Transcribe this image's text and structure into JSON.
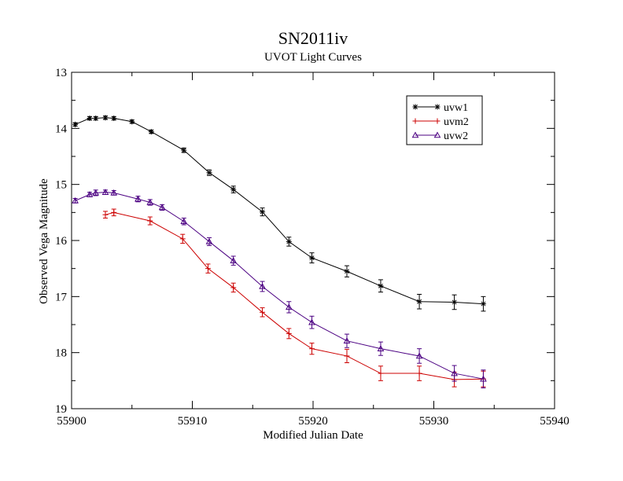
{
  "chart_data": {
    "type": "line",
    "title": "SN2011iv",
    "subtitle": "UVOT Light Curves",
    "xlabel": "Modified Julian Date",
    "ylabel": "Observed Vega Magnitude",
    "xlim": [
      55900,
      55940
    ],
    "ylim": [
      13,
      19
    ],
    "y_inverted": true,
    "x_ticks": [
      "55900",
      "55910",
      "55920",
      "55930",
      "55940"
    ],
    "y_ticks": [
      "13",
      "14",
      "15",
      "16",
      "17",
      "18",
      "19"
    ],
    "grid": false,
    "legend_position": "top-right",
    "series": [
      {
        "name": "uvw1",
        "color": "#000000",
        "marker": "star",
        "x": [
          55900.3,
          55901.5,
          55902.0,
          55902.8,
          55903.5,
          55905.0,
          55906.6,
          55909.3,
          55911.4,
          55913.4,
          55915.8,
          55918.0,
          55919.9,
          55922.8,
          55925.6,
          55928.8,
          55931.7,
          55934.1
        ],
        "y": [
          13.93,
          13.82,
          13.82,
          13.81,
          13.82,
          13.88,
          14.06,
          14.39,
          14.79,
          15.09,
          15.49,
          16.02,
          16.31,
          16.55,
          16.81,
          17.09,
          17.1,
          17.13
        ],
        "err": [
          0.03,
          0.03,
          0.03,
          0.03,
          0.03,
          0.03,
          0.03,
          0.04,
          0.05,
          0.06,
          0.07,
          0.08,
          0.09,
          0.1,
          0.11,
          0.13,
          0.13,
          0.13
        ]
      },
      {
        "name": "uvm2",
        "color": "#cc0000",
        "marker": "plus",
        "x": [
          55902.8,
          55903.5,
          55906.5,
          55909.2,
          55911.3,
          55913.4,
          55915.8,
          55918.0,
          55919.9,
          55922.8,
          55925.6,
          55928.8,
          55931.7,
          55934.1
        ],
        "y": [
          15.54,
          15.5,
          15.65,
          15.97,
          16.5,
          16.84,
          17.28,
          17.66,
          17.93,
          18.06,
          18.37,
          18.37,
          18.48,
          18.47
        ],
        "err": [
          0.06,
          0.06,
          0.07,
          0.08,
          0.08,
          0.08,
          0.08,
          0.09,
          0.1,
          0.12,
          0.13,
          0.13,
          0.13,
          0.14
        ]
      },
      {
        "name": "uvw2",
        "color": "#4b0082",
        "marker": "triangle",
        "x": [
          55900.3,
          55901.5,
          55902.0,
          55902.8,
          55903.5,
          55905.5,
          55906.5,
          55907.5,
          55909.3,
          55911.4,
          55913.4,
          55915.8,
          55918.0,
          55919.9,
          55922.8,
          55925.6,
          55928.8,
          55931.7,
          55934.1
        ],
        "y": [
          15.29,
          15.18,
          15.15,
          15.14,
          15.15,
          15.26,
          15.32,
          15.41,
          15.66,
          16.02,
          16.36,
          16.82,
          17.19,
          17.46,
          17.79,
          17.93,
          18.06,
          18.37,
          18.47
        ],
        "err": [
          0.04,
          0.04,
          0.05,
          0.04,
          0.04,
          0.05,
          0.05,
          0.05,
          0.06,
          0.07,
          0.08,
          0.09,
          0.1,
          0.11,
          0.12,
          0.12,
          0.13,
          0.14,
          0.16
        ]
      }
    ]
  }
}
